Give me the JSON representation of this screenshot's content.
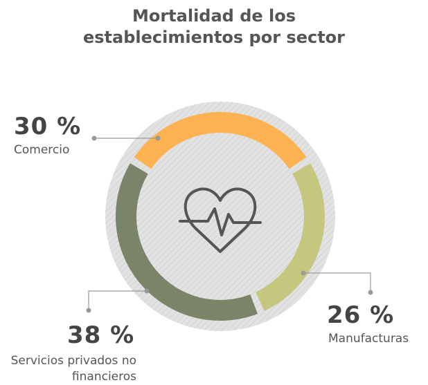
{
  "chart_data": {
    "type": "donut",
    "title": "Mortalidad de los establecimientos por sector",
    "categories": [
      "Comercio",
      "Manufacturas",
      "Servicios privados no financieros"
    ],
    "values": [
      30,
      26,
      38
    ],
    "value_labels": [
      "30 %",
      "26 %",
      "38 %"
    ],
    "colors": [
      "#fdb252",
      "#c5c77f",
      "#7a8468"
    ]
  }
}
